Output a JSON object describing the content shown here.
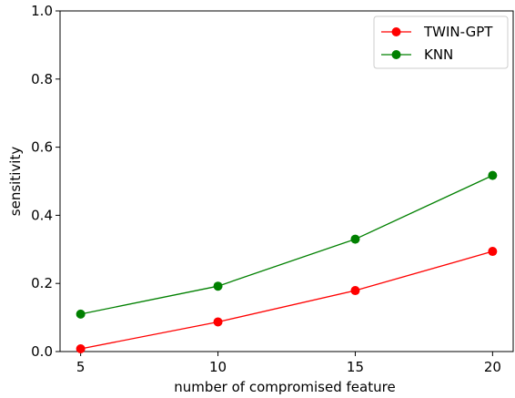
{
  "chart_data": {
    "type": "line",
    "title": "",
    "xlabel": "number of compromised feature",
    "ylabel": "sensitivity",
    "x": [
      5,
      10,
      15,
      20
    ],
    "xlim": [
      4.25,
      20.75
    ],
    "ylim": [
      0.0,
      1.0
    ],
    "xticks": [
      5,
      10,
      15,
      20
    ],
    "yticks": [
      0.0,
      0.2,
      0.4,
      0.6,
      0.8,
      1.0
    ],
    "xtick_labels": [
      "5",
      "10",
      "15",
      "20"
    ],
    "ytick_labels": [
      "0.0",
      "0.2",
      "0.4",
      "0.6",
      "0.8",
      "1.0"
    ],
    "grid": false,
    "legend_position": "top-right",
    "series": [
      {
        "name": "TWIN-GPT",
        "color": "#ff0000",
        "values": [
          0.008,
          0.087,
          0.179,
          0.294
        ]
      },
      {
        "name": "KNN",
        "color": "#008000",
        "values": [
          0.11,
          0.192,
          0.33,
          0.517
        ]
      }
    ]
  }
}
